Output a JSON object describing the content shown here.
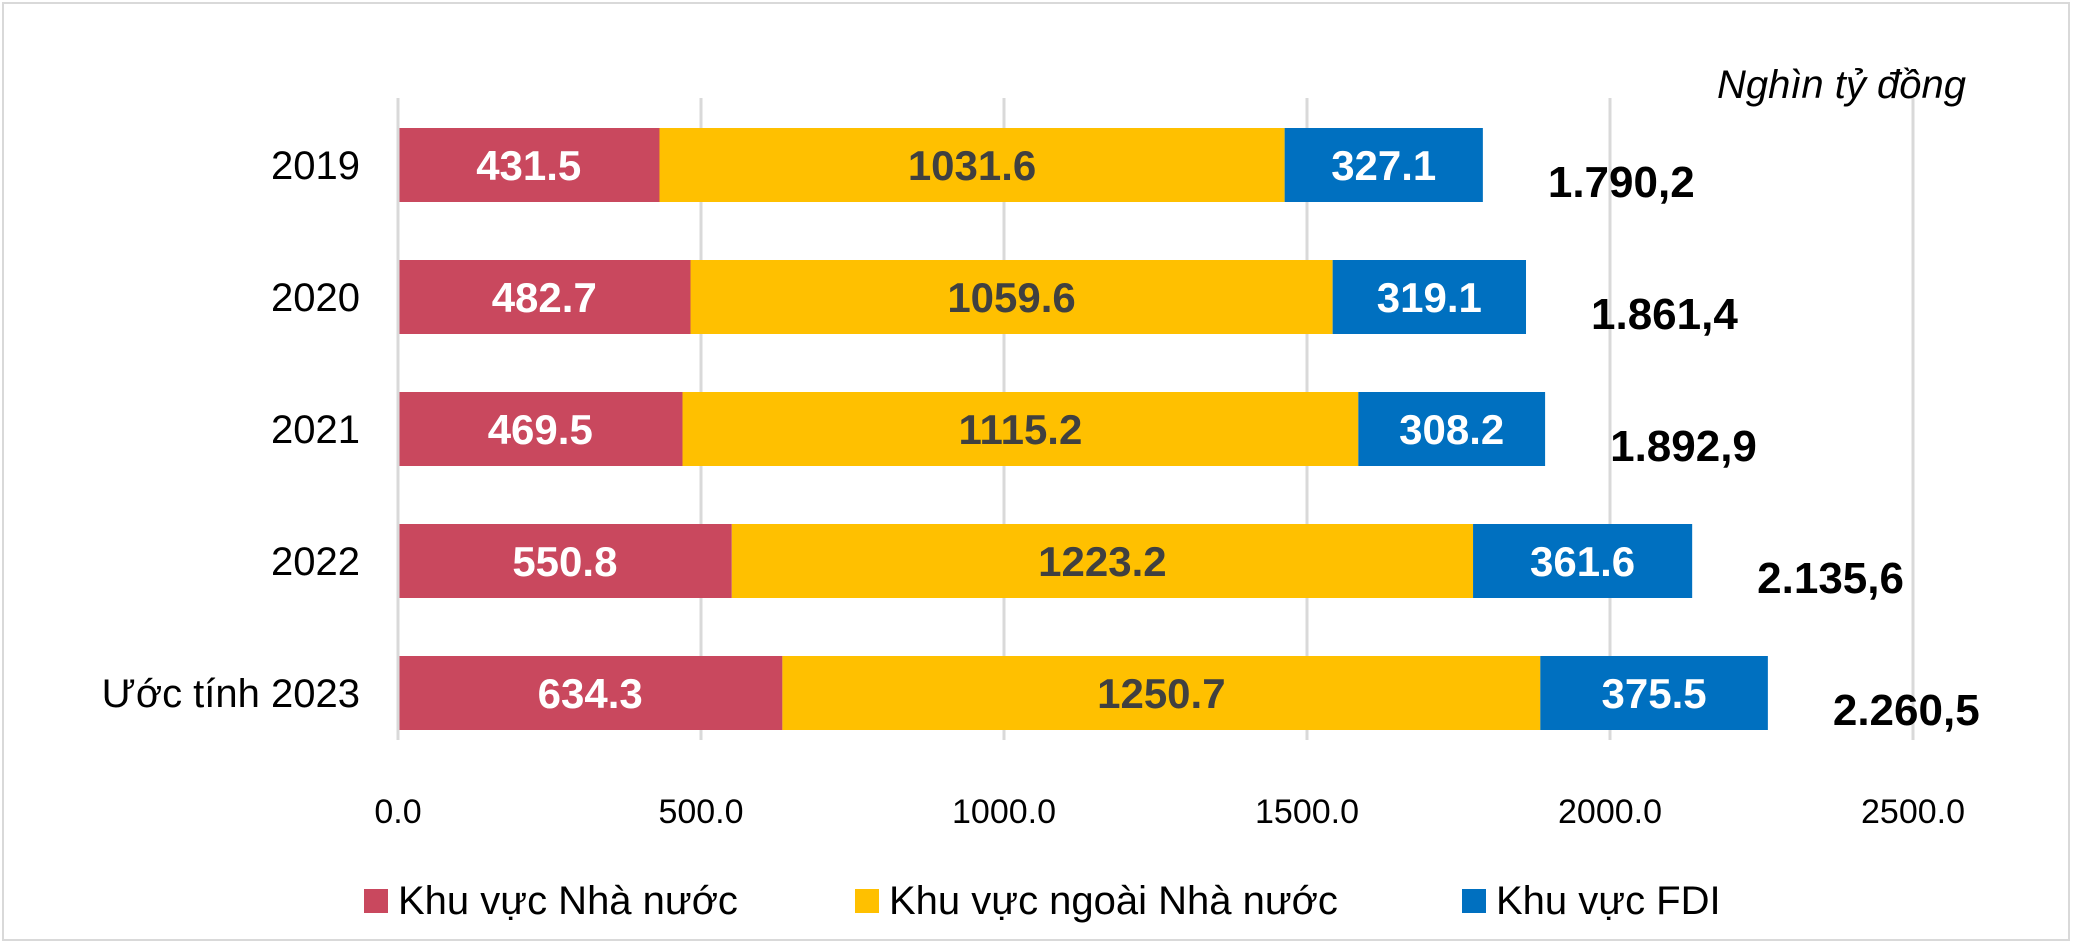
{
  "chart_data": {
    "type": "bar",
    "orientation": "horizontal",
    "stacked": true,
    "unit_label": "Nghìn tỷ đồng",
    "categories": [
      "2019",
      "2020",
      "2021",
      "2022",
      "Ước tính 2023"
    ],
    "series": [
      {
        "name": "Khu vực Nhà nước",
        "color": "#C9485E",
        "label_color": "#FFFFFF",
        "values": [
          431.5,
          482.7,
          469.5,
          550.8,
          634.3
        ],
        "value_labels": [
          "431.5",
          "482.7",
          "469.5",
          "550.8",
          "634.3"
        ]
      },
      {
        "name": "Khu vực ngoài Nhà nước",
        "color": "#FFC000",
        "label_color": "#404040",
        "values": [
          1031.6,
          1059.6,
          1115.2,
          1223.2,
          1250.7
        ],
        "value_labels": [
          "1031.6",
          "1059.6",
          "1115.2",
          "1223.2",
          "1250.7"
        ]
      },
      {
        "name": "Khu vực FDI",
        "color": "#0070C0",
        "label_color": "#FFFFFF",
        "values": [
          327.1,
          319.1,
          308.2,
          361.6,
          375.5
        ],
        "value_labels": [
          "327.1",
          "319.1",
          "308.2",
          "361.6",
          "375.5"
        ]
      }
    ],
    "totals": [
      "1.790,2",
      "1.861,4",
      "1.892,9",
      "2.135,6",
      "2.260,5"
    ],
    "xlim": [
      0,
      2500
    ],
    "xticks": [
      0,
      500,
      1000,
      1500,
      2000,
      2500
    ],
    "xtick_labels": [
      "0.0",
      "500.0",
      "1000.0",
      "1500.0",
      "2000.0",
      "2500.0"
    ],
    "grid": true,
    "legend_position": "bottom"
  }
}
